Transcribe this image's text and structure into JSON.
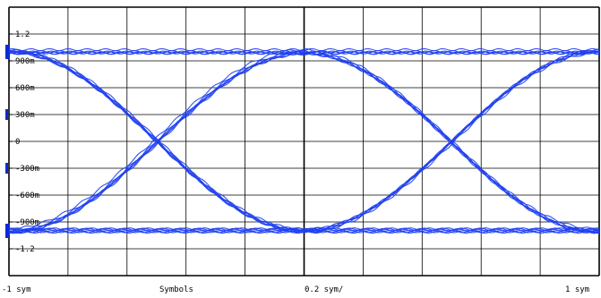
{
  "chart_data": {
    "type": "line",
    "title": "",
    "x_tick_labels": [
      "-1 sym",
      "1 sym"
    ],
    "x_center_label": "Symbols",
    "x_scale_label": "0.2 sym/",
    "xlim": [
      -1,
      1
    ],
    "ylim": [
      -1.5,
      1.5
    ],
    "y_ticks": [
      {
        "value": 1.2,
        "label": "1.2"
      },
      {
        "value": 0.9,
        "label": "900m"
      },
      {
        "value": 0.6,
        "label": "600m"
      },
      {
        "value": 0.3,
        "label": "300m"
      },
      {
        "value": 0,
        "label": "0"
      },
      {
        "value": -0.3,
        "label": "-300m"
      },
      {
        "value": -0.6,
        "label": "-600m"
      },
      {
        "value": -0.9,
        "label": "-900m"
      },
      {
        "value": -1.2,
        "label": "-1.2"
      }
    ],
    "grid": true,
    "levels": [
      1.0,
      -1.0
    ],
    "crossings": [
      -0.5,
      0.5
    ],
    "series": [
      {
        "x": [
          -1,
          -0.5,
          0,
          0.5,
          1
        ],
        "y": [
          1,
          0,
          -1,
          0,
          1
        ]
      },
      {
        "x": [
          -1,
          -0.5,
          0,
          0.5,
          1
        ],
        "y": [
          -1,
          0,
          1,
          0,
          -1
        ]
      },
      {
        "x": [
          -1,
          1
        ],
        "y": [
          1,
          1
        ]
      },
      {
        "x": [
          -1,
          1
        ],
        "y": [
          -1,
          -1
        ]
      }
    ],
    "colors": {
      "trace": "#1f3ff0",
      "grid": "#000000",
      "background": "#ffffff",
      "marker": "#0a2ad8"
    }
  }
}
